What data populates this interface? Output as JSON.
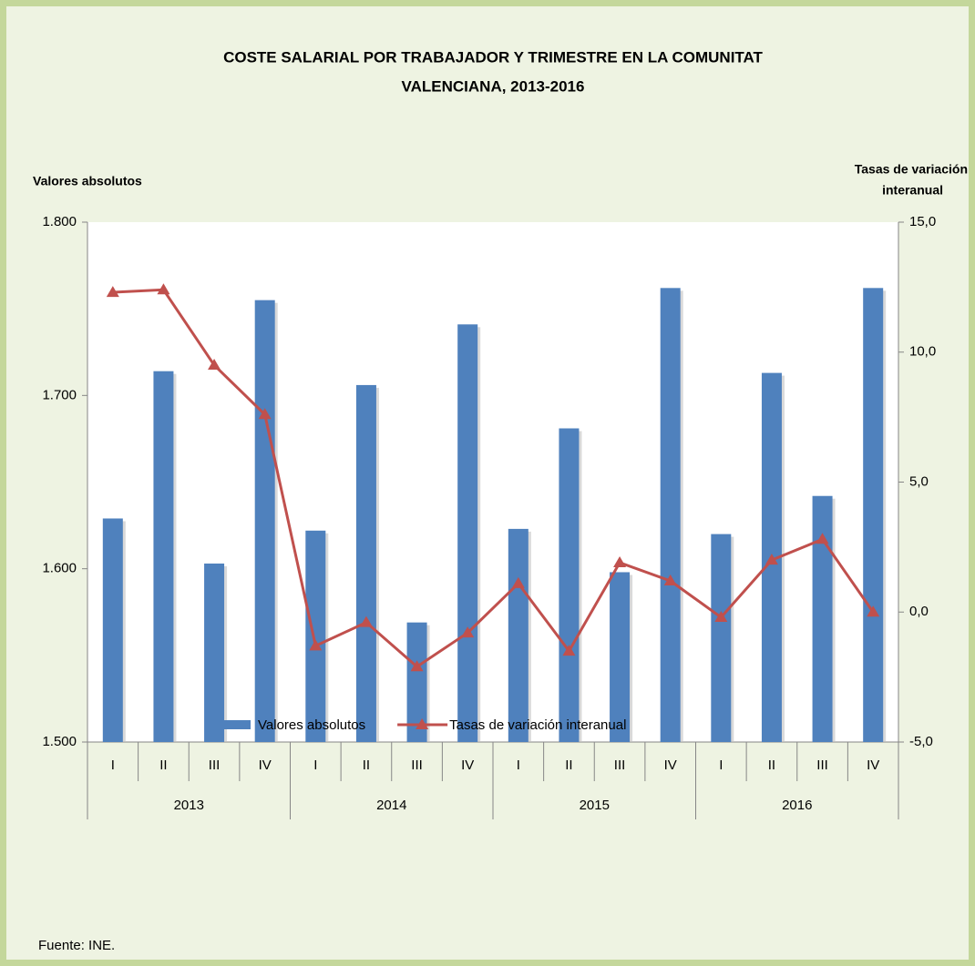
{
  "chart_data": {
    "type": "bar_line",
    "title": [
      "COSTE SALARIAL POR TRABAJADOR Y TRIMESTRE EN LA COMUNITAT",
      "VALENCIANA, 2013-2016"
    ],
    "ylabel": "Valores absolutos",
    "y2label": [
      "Tasas de variación",
      "interanual"
    ],
    "groups": [
      {
        "name": "2013",
        "categories": [
          "I",
          "II",
          "III",
          "IV"
        ]
      },
      {
        "name": "2014",
        "categories": [
          "I",
          "II",
          "III",
          "IV"
        ]
      },
      {
        "name": "2015",
        "categories": [
          "I",
          "II",
          "III",
          "IV"
        ]
      },
      {
        "name": "2016",
        "categories": [
          "I",
          "II",
          "III",
          "IV"
        ]
      }
    ],
    "series": [
      {
        "name": "Valores absolutos",
        "type": "bar",
        "color": "#4f81bd",
        "axis": "y",
        "values": [
          1629,
          1714,
          1603,
          1755,
          1622,
          1706,
          1569,
          1741,
          1623,
          1681,
          1598,
          1762,
          1620,
          1713,
          1642,
          1762
        ]
      },
      {
        "name": "Tasas de variación interanual",
        "type": "line",
        "color": "#c0504d",
        "axis": "y2",
        "values": [
          12.3,
          12.4,
          9.5,
          7.6,
          -1.3,
          -0.4,
          -2.1,
          -0.8,
          1.1,
          -1.5,
          1.9,
          1.2,
          -0.2,
          2.0,
          2.8,
          0.0
        ]
      }
    ],
    "ylim": [
      1500,
      1800
    ],
    "yticks": [
      {
        "value": 1500,
        "label": "1.500"
      },
      {
        "value": 1600,
        "label": "1.600"
      },
      {
        "value": 1700,
        "label": "1.700"
      },
      {
        "value": 1800,
        "label": "1.800"
      }
    ],
    "y2lim": [
      -5,
      15
    ],
    "y2ticks": [
      {
        "value": -5,
        "label": "-5,0"
      },
      {
        "value": 0,
        "label": "0,0"
      },
      {
        "value": 5,
        "label": "5,0"
      },
      {
        "value": 10,
        "label": "10,0"
      },
      {
        "value": 15,
        "label": "15,0"
      }
    ],
    "legend": "bottom",
    "source": "Fuente: INE."
  }
}
